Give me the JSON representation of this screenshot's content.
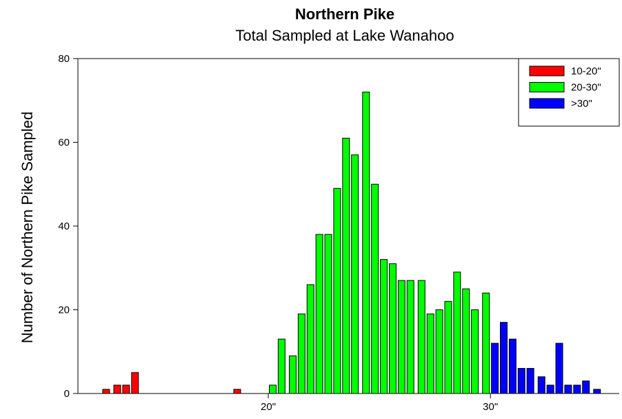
{
  "chart_data": {
    "type": "bar",
    "title": "Northern Pike",
    "subtitle": "Total Sampled at Lake Wanahoo",
    "y_label": "Number of Northern Pike Sampled",
    "xlim": [
      11.43,
      35.8
    ],
    "ylim": [
      0,
      80
    ],
    "xticks": [
      {
        "value": 20,
        "label": "20\""
      },
      {
        "value": 30,
        "label": "30\""
      }
    ],
    "yticks": [
      0,
      20,
      40,
      60,
      80
    ],
    "legend": "top-right",
    "series": [
      {
        "name": "10-20\"",
        "color": "#ff0000",
        "x": [
          12.7,
          13.2,
          13.6,
          14.0,
          18.6
        ],
        "values": [
          1,
          2,
          2,
          5,
          1
        ]
      },
      {
        "name": "20-30\"",
        "color": "#00ff00",
        "x": [
          20.2,
          20.6,
          21.1,
          21.5,
          21.9,
          22.3,
          22.7,
          23.1,
          23.5,
          23.9,
          24.4,
          24.8,
          25.2,
          25.6,
          26.0,
          26.4,
          26.9,
          27.3,
          27.7,
          28.1,
          28.5,
          28.9,
          29.3,
          29.8
        ],
        "values": [
          2,
          13,
          9,
          19,
          26,
          38,
          38,
          49,
          61,
          57,
          72,
          50,
          32,
          31,
          27,
          27,
          27,
          19,
          20,
          22,
          29,
          25,
          20,
          24
        ]
      },
      {
        "name": ">30\"",
        "color": "#0000ff",
        "x": [
          30.2,
          30.6,
          31.0,
          31.4,
          31.8,
          32.3,
          32.7,
          33.1,
          33.5,
          33.9,
          34.3,
          34.8
        ],
        "values": [
          12,
          17,
          13,
          6,
          6,
          4,
          2,
          12,
          2,
          2,
          3,
          1
        ]
      }
    ]
  }
}
